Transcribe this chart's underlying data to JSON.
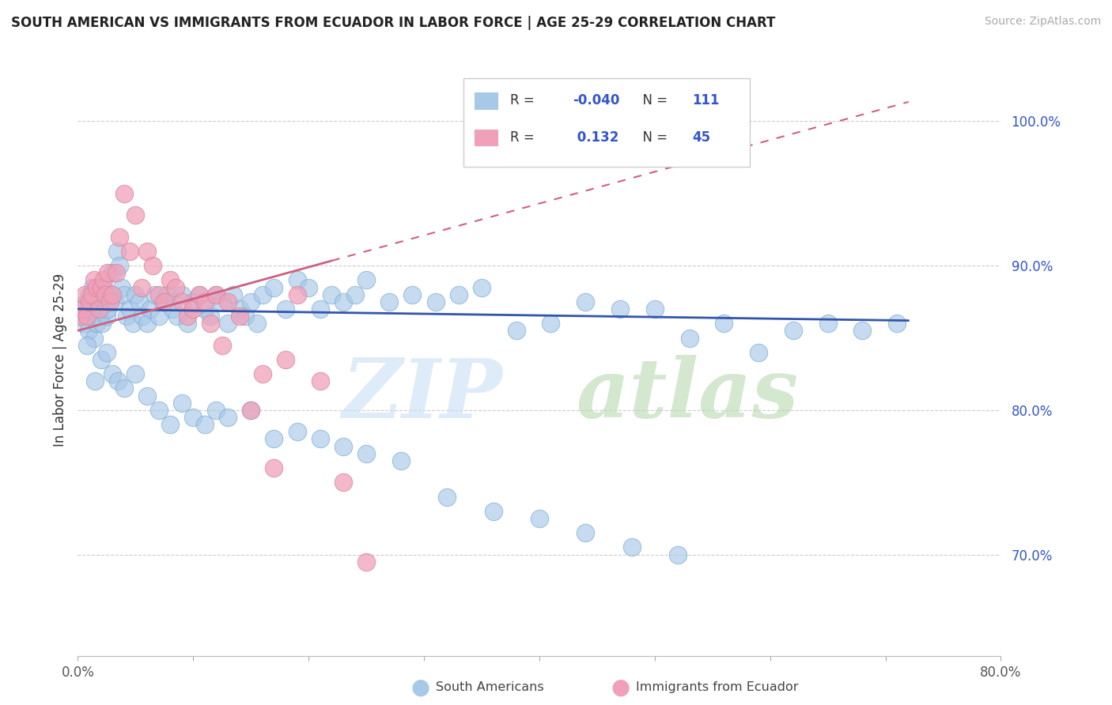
{
  "title": "SOUTH AMERICAN VS IMMIGRANTS FROM ECUADOR IN LABOR FORCE | AGE 25-29 CORRELATION CHART",
  "source": "Source: ZipAtlas.com",
  "ylabel": "In Labor Force | Age 25-29",
  "blue_R": "-0.040",
  "blue_N": "111",
  "pink_R": "0.132",
  "pink_N": "45",
  "blue_color": "#a8c8e8",
  "pink_color": "#f0a0b8",
  "blue_line_color": "#3355aa",
  "pink_line_color": "#d06080",
  "accent_color": "#3355cc",
  "xmin": 0,
  "xmax": 80,
  "ymin": 63,
  "ymax": 104,
  "ytick_vals": [
    70,
    80,
    90,
    100
  ],
  "ytick_labels": [
    "70.0%",
    "80.0%",
    "90.0%",
    "100.0%"
  ],
  "blue_x": [
    0.3,
    0.5,
    0.7,
    0.9,
    1.0,
    1.1,
    1.2,
    1.3,
    1.4,
    1.5,
    1.6,
    1.7,
    1.8,
    1.9,
    2.0,
    2.1,
    2.2,
    2.3,
    2.5,
    2.6,
    2.8,
    3.0,
    3.2,
    3.4,
    3.6,
    3.8,
    4.0,
    4.2,
    4.5,
    4.8,
    5.0,
    5.3,
    5.6,
    6.0,
    6.3,
    6.7,
    7.0,
    7.4,
    7.8,
    8.2,
    8.6,
    9.0,
    9.5,
    10.0,
    10.5,
    11.0,
    11.5,
    12.0,
    12.5,
    13.0,
    13.5,
    14.0,
    14.5,
    15.0,
    15.5,
    16.0,
    17.0,
    18.0,
    19.0,
    20.0,
    21.0,
    22.0,
    23.0,
    24.0,
    25.0,
    27.0,
    29.0,
    31.0,
    33.0,
    35.0,
    38.0,
    41.0,
    44.0,
    47.0,
    50.0,
    53.0,
    56.0,
    59.0,
    62.0,
    65.0,
    68.0,
    71.0,
    0.8,
    1.5,
    2.0,
    2.5,
    3.0,
    3.5,
    4.0,
    5.0,
    6.0,
    7.0,
    8.0,
    9.0,
    10.0,
    11.0,
    12.0,
    13.0,
    15.0,
    17.0,
    19.0,
    21.0,
    23.0,
    25.0,
    28.0,
    32.0,
    36.0,
    40.0,
    44.0,
    48.0,
    52.0
  ],
  "blue_y": [
    86.5,
    86.0,
    87.5,
    85.5,
    88.0,
    87.0,
    86.5,
    88.5,
    85.0,
    87.0,
    86.0,
    87.5,
    88.0,
    86.5,
    87.0,
    86.0,
    88.5,
    87.5,
    86.5,
    87.0,
    88.0,
    89.5,
    87.5,
    91.0,
    90.0,
    88.5,
    88.0,
    86.5,
    87.0,
    86.0,
    88.0,
    87.5,
    86.5,
    86.0,
    87.0,
    88.0,
    86.5,
    87.5,
    88.0,
    87.0,
    86.5,
    88.0,
    86.0,
    87.5,
    88.0,
    87.0,
    86.5,
    88.0,
    87.5,
    86.0,
    88.0,
    87.0,
    86.5,
    87.5,
    86.0,
    88.0,
    88.5,
    87.0,
    89.0,
    88.5,
    87.0,
    88.0,
    87.5,
    88.0,
    89.0,
    87.5,
    88.0,
    87.5,
    88.0,
    88.5,
    85.5,
    86.0,
    87.5,
    87.0,
    87.0,
    85.0,
    86.0,
    84.0,
    85.5,
    86.0,
    85.5,
    86.0,
    84.5,
    82.0,
    83.5,
    84.0,
    82.5,
    82.0,
    81.5,
    82.5,
    81.0,
    80.0,
    79.0,
    80.5,
    79.5,
    79.0,
    80.0,
    79.5,
    80.0,
    78.0,
    78.5,
    78.0,
    77.5,
    77.0,
    76.5,
    74.0,
    73.0,
    72.5,
    71.5,
    70.5,
    70.0
  ],
  "pink_x": [
    0.2,
    0.4,
    0.6,
    0.8,
    1.0,
    1.2,
    1.4,
    1.6,
    1.8,
    2.0,
    2.2,
    2.4,
    2.6,
    2.8,
    3.0,
    3.3,
    3.6,
    4.0,
    4.5,
    5.0,
    5.5,
    6.0,
    6.5,
    7.0,
    7.5,
    8.0,
    8.5,
    9.0,
    9.5,
    10.0,
    10.5,
    11.0,
    11.5,
    12.0,
    12.5,
    13.0,
    14.0,
    15.0,
    16.0,
    17.0,
    18.0,
    19.0,
    21.0,
    23.0,
    25.0
  ],
  "pink_y": [
    86.5,
    87.0,
    88.0,
    86.5,
    87.5,
    88.0,
    89.0,
    88.5,
    87.0,
    88.5,
    89.0,
    88.0,
    89.5,
    87.5,
    88.0,
    89.5,
    92.0,
    95.0,
    91.0,
    93.5,
    88.5,
    91.0,
    90.0,
    88.0,
    87.5,
    89.0,
    88.5,
    87.5,
    86.5,
    87.0,
    88.0,
    87.5,
    86.0,
    88.0,
    84.5,
    87.5,
    86.5,
    80.0,
    82.5,
    76.0,
    83.5,
    88.0,
    82.0,
    75.0,
    69.5
  ]
}
